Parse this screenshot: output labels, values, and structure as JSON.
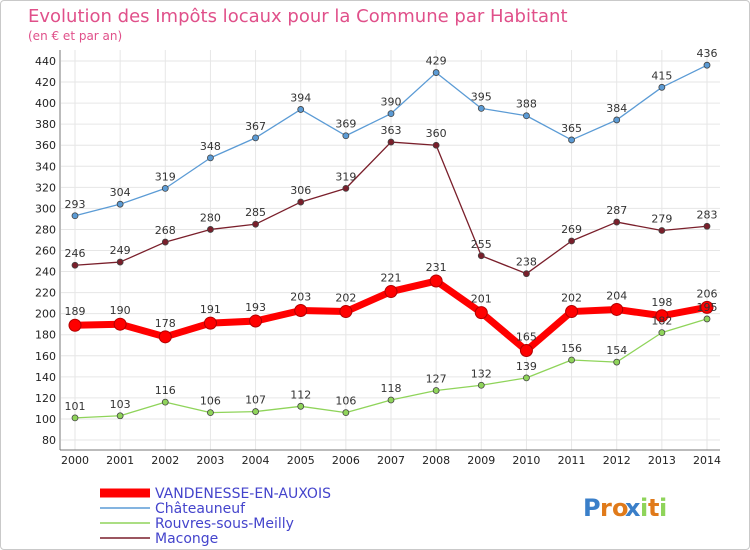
{
  "chart_data": {
    "type": "line",
    "title": "Evolution des Impôts locaux pour la Commune par Habitant",
    "subtitle": "(en € et par an)",
    "xlabel": "",
    "ylabel": "",
    "ylim": [
      80,
      440
    ],
    "yticks": [
      80,
      100,
      120,
      140,
      160,
      180,
      200,
      220,
      240,
      260,
      280,
      300,
      320,
      340,
      360,
      380,
      400,
      420,
      440
    ],
    "x": [
      "2000",
      "2001",
      "2002",
      "2003",
      "2004",
      "2005",
      "2006",
      "2007",
      "2008",
      "2009",
      "2010",
      "2011",
      "2012",
      "2013",
      "2014"
    ],
    "grid": true,
    "legend_position": "bottom-left",
    "series": [
      {
        "name": "Châteauneuf",
        "color": "#5b9bd5",
        "values": [
          293,
          304,
          319,
          348,
          367,
          394,
          369,
          390,
          429,
          395,
          388,
          365,
          384,
          415,
          436
        ]
      },
      {
        "name": "Maconge",
        "color": "#7a1f2b",
        "values": [
          246,
          249,
          268,
          280,
          285,
          306,
          319,
          363,
          360,
          255,
          238,
          269,
          287,
          279,
          283
        ]
      },
      {
        "name": "Rouvres-sous-Meilly",
        "color": "#8fd45a",
        "values": [
          101,
          103,
          116,
          106,
          107,
          112,
          106,
          118,
          127,
          132,
          139,
          156,
          154,
          182,
          195
        ]
      },
      {
        "name": "VANDENESSE-EN-AUXOIS",
        "color": "#ff0000",
        "values": [
          189,
          190,
          178,
          191,
          193,
          203,
          202,
          221,
          231,
          201,
          165,
          202,
          204,
          198,
          206
        ]
      }
    ],
    "legend_order": [
      "VANDENESSE-EN-AUXOIS",
      "Châteauneuf",
      "Rouvres-sous-Meilly",
      "Maconge"
    ],
    "highlighted_series": "VANDENESSE-EN-AUXOIS",
    "colors": {
      "title": "#e0508a",
      "legend_text": "#4444cc",
      "grid": "#e6e6e6"
    }
  },
  "watermark": {
    "text": "Proxiti",
    "letters": [
      "P",
      "r",
      "o",
      "x",
      "i",
      "t",
      "i"
    ]
  }
}
